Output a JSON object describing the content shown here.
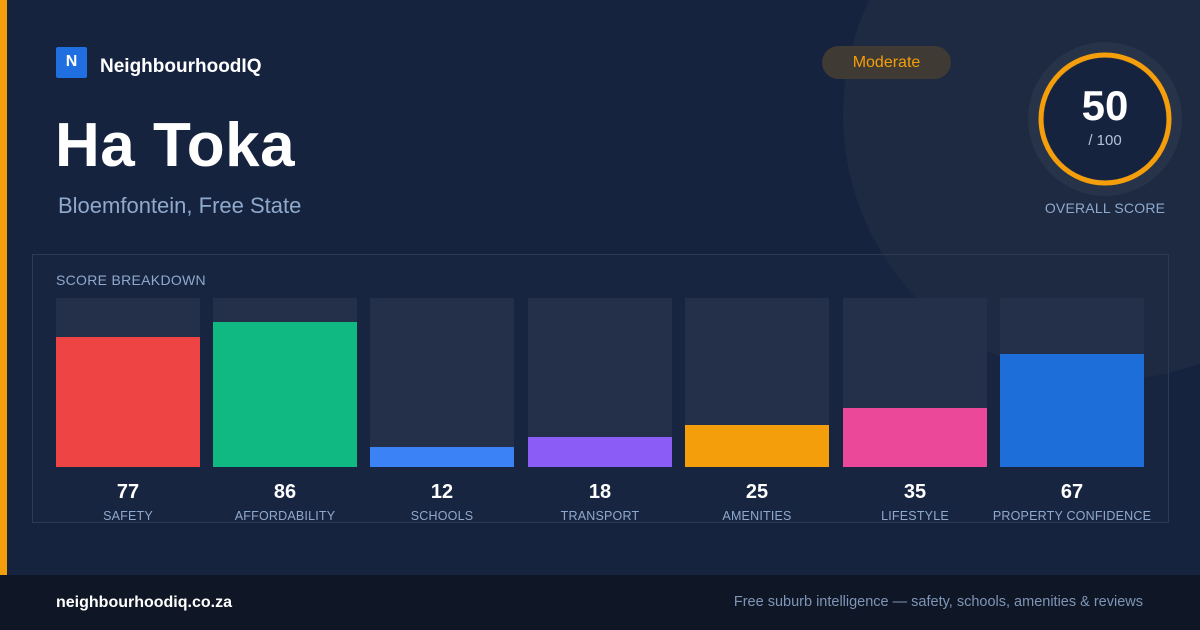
{
  "brand": {
    "logo_letter": "N",
    "name": "NeighbourhoodIQ"
  },
  "rating_badge": "Moderate",
  "suburb": {
    "name": "Ha Toka",
    "location": "Bloemfontein, Free State"
  },
  "overall": {
    "score": "50",
    "max": "/ 100",
    "label": "OVERALL SCORE",
    "fraction": 0.5,
    "color": "#f59e0b"
  },
  "breakdown": {
    "title": "SCORE BREAKDOWN",
    "bars": [
      {
        "label": "SAFETY",
        "value": "77",
        "fraction": 0.77,
        "color": "#ef4444"
      },
      {
        "label": "AFFORDABILITY",
        "value": "86",
        "fraction": 0.86,
        "color": "#10b981"
      },
      {
        "label": "SCHOOLS",
        "value": "12",
        "fraction": 0.12,
        "color": "#3b82f6"
      },
      {
        "label": "TRANSPORT",
        "value": "18",
        "fraction": 0.18,
        "color": "#8b5cf6"
      },
      {
        "label": "AMENITIES",
        "value": "25",
        "fraction": 0.25,
        "color": "#f59e0b"
      },
      {
        "label": "LIFESTYLE",
        "value": "35",
        "fraction": 0.35,
        "color": "#ec4899"
      },
      {
        "label": "PROPERTY CONFIDENCE",
        "value": "67",
        "fraction": 0.67,
        "color": "#1d6ed8"
      }
    ]
  },
  "footer": {
    "url": "neighbourhoodiq.co.za",
    "tagline": "Free suburb intelligence — safety, schools, amenities & reviews"
  }
}
